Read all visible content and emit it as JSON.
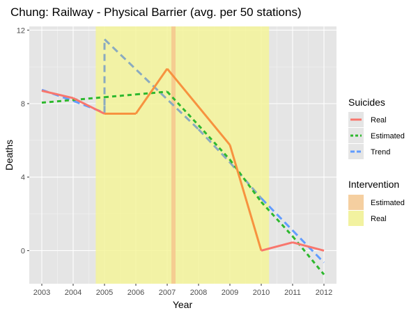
{
  "chart_data": {
    "type": "line",
    "title": "Chung: Railway - Physical Barrier (avg. per 50 stations)",
    "xlabel": "Year",
    "ylabel": "Deaths",
    "xlim": [
      2002.6,
      2012.4
    ],
    "ylim": [
      -1.8,
      12.2
    ],
    "x_ticks": [
      2003,
      2004,
      2005,
      2006,
      2007,
      2008,
      2009,
      2010,
      2011,
      2012
    ],
    "y_ticks": [
      0,
      4,
      8,
      12
    ],
    "grid": true,
    "panel_background": "#e5e5e5",
    "legend_position": "right",
    "legends": [
      {
        "title": "Suicides",
        "entries": [
          {
            "label": "Real",
            "color": "#f8766d",
            "style": "solid"
          },
          {
            "label": "Estimated",
            "color": "#2eb82e",
            "style": "dashed"
          },
          {
            "label": "Trend",
            "color": "#619cff",
            "style": "dashed"
          }
        ]
      },
      {
        "title": "Intervention",
        "entries": [
          {
            "label": "Estimated",
            "color": "#f5cfa0"
          },
          {
            "label": "Real",
            "color": "#f2f2a0"
          }
        ]
      }
    ],
    "intervention": {
      "real": [
        2004.72,
        2010.25
      ],
      "estimated": 2007.2
    },
    "series": [
      {
        "name": "Real",
        "x": [
          2003,
          2004,
          2005,
          2006,
          2007,
          2009,
          2010,
          2011,
          2012
        ],
        "y": [
          8.7,
          8.3,
          7.45,
          7.45,
          9.9,
          5.75,
          0.0,
          0.45,
          0.0
        ],
        "color": "#f8766d",
        "intervention_color": "#f7923f",
        "dash": "none"
      },
      {
        "name": "Estimated",
        "x": [
          2003,
          2004,
          2005,
          2006,
          2007,
          2008,
          2009,
          2010,
          2011,
          2012
        ],
        "y": [
          8.05,
          8.2,
          8.35,
          8.5,
          8.65,
          6.82,
          4.95,
          2.65,
          0.78,
          -1.3
        ],
        "color": "#2eb82e",
        "dash": "6,5"
      },
      {
        "name": "Trend",
        "x": [
          2003,
          2004,
          2005,
          2005,
          2005,
          2008,
          2009,
          2010,
          2011,
          2012
        ],
        "y": [
          8.75,
          8.15,
          7.5,
          7.9,
          11.5,
          6.6,
          4.8,
          2.85,
          1.1,
          -0.65
        ],
        "color": "#619cff",
        "intervention_color": "#8aaac0",
        "dash": "10,6"
      }
    ]
  }
}
